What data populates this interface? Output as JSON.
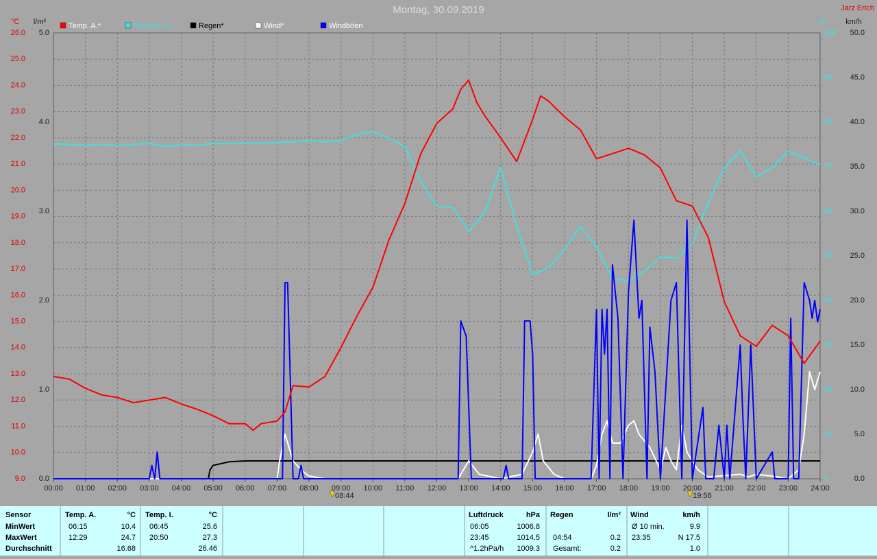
{
  "chart_data": {
    "type": "line",
    "title": "Montag, 30.09.2019",
    "author": "Jarz Erich",
    "xlim": [
      0,
      24
    ],
    "xticks": [
      {
        "value": 0,
        "label": "00:00"
      },
      {
        "value": 1,
        "label": "01:00"
      },
      {
        "value": 2,
        "label": "02:00"
      },
      {
        "value": 3,
        "label": "03:00"
      },
      {
        "value": 4,
        "label": "04:00"
      },
      {
        "value": 5,
        "label": "05:00"
      },
      {
        "value": 6,
        "label": "06:00"
      },
      {
        "value": 7,
        "label": "07:00"
      },
      {
        "value": 8,
        "label": "08:00"
      },
      {
        "value": 9,
        "label": "09:00"
      },
      {
        "value": 10,
        "label": "10:00"
      },
      {
        "value": 11,
        "label": "11:00"
      },
      {
        "value": 12,
        "label": "12:00"
      },
      {
        "value": 13,
        "label": "13:00"
      },
      {
        "value": 14,
        "label": "14:00"
      },
      {
        "value": 15,
        "label": "15:00"
      },
      {
        "value": 16,
        "label": "16:00"
      },
      {
        "value": 17,
        "label": "17:00"
      },
      {
        "value": 18,
        "label": "18:00"
      },
      {
        "value": 19,
        "label": "19:00"
      },
      {
        "value": 20,
        "label": "20:00"
      },
      {
        "value": 21,
        "label": "21:00"
      },
      {
        "value": 22,
        "label": "22:00"
      },
      {
        "value": 23,
        "label": "23:00"
      },
      {
        "value": 24,
        "label": "24:00"
      }
    ],
    "ylabel": "°C",
    "ylim": [
      9,
      26
    ],
    "yticks": [
      {
        "value": 9,
        "label": "9.0"
      },
      {
        "value": 10,
        "label": "10.0"
      },
      {
        "value": 11,
        "label": "11.0"
      },
      {
        "value": 12,
        "label": "12.0"
      },
      {
        "value": 13,
        "label": "13.0"
      },
      {
        "value": 14,
        "label": "14.0"
      },
      {
        "value": 15,
        "label": "15.0"
      },
      {
        "value": 16,
        "label": "16.0"
      },
      {
        "value": 17,
        "label": "17.0"
      },
      {
        "value": 18,
        "label": "18.0"
      },
      {
        "value": 19,
        "label": "19.0"
      },
      {
        "value": 20,
        "label": "20.0"
      },
      {
        "value": 21,
        "label": "21.0"
      },
      {
        "value": 22,
        "label": "22.0"
      },
      {
        "value": 23,
        "label": "23.0"
      },
      {
        "value": 24,
        "label": "24.0"
      },
      {
        "value": 25,
        "label": "25.0"
      },
      {
        "value": 26,
        "label": "26.0"
      }
    ],
    "y2label": "l/m²",
    "y2lim": [
      0,
      5
    ],
    "y2ticks": [
      {
        "value": 0,
        "label": "0.0"
      },
      {
        "value": 1,
        "label": "1.0"
      },
      {
        "value": 2,
        "label": "2.0"
      },
      {
        "value": 3,
        "label": "3.0"
      },
      {
        "value": 4,
        "label": "4.0"
      },
      {
        "value": 5,
        "label": "5.0"
      }
    ],
    "y3label": "%",
    "y3lim": [
      0,
      100
    ],
    "y3ticks": [
      0,
      10,
      20,
      30,
      40,
      50,
      60,
      70,
      80,
      90,
      100
    ],
    "y4label": "km/h",
    "y4lim": [
      0,
      50
    ],
    "y4ticks": [
      {
        "value": 0,
        "label": "0.0"
      },
      {
        "value": 5,
        "label": "5.0"
      },
      {
        "value": 10,
        "label": "10.0"
      },
      {
        "value": 15,
        "label": "15.0"
      },
      {
        "value": 20,
        "label": "20.0"
      },
      {
        "value": 25,
        "label": "25.0"
      },
      {
        "value": 30,
        "label": "30.0"
      },
      {
        "value": 35,
        "label": "35.0"
      },
      {
        "value": 40,
        "label": "40.0"
      },
      {
        "value": 45,
        "label": "45.0"
      },
      {
        "value": 50,
        "label": "50.0"
      }
    ],
    "grid": true,
    "series": [
      {
        "name": "Temp. A.*",
        "color": "#ff0000",
        "axis": "y",
        "x": [
          0,
          0.5,
          1,
          1.5,
          2,
          2.5,
          3,
          3.5,
          4,
          4.5,
          5,
          5.5,
          6,
          6.25,
          6.5,
          7,
          7.25,
          7.5,
          8,
          8.5,
          9,
          9.5,
          10,
          10.5,
          11,
          11.5,
          12,
          12.5,
          12.75,
          13,
          13.25,
          13.5,
          14,
          14.5,
          15,
          15.25,
          15.5,
          16,
          16.5,
          17,
          17.5,
          18,
          18.5,
          19,
          19.5,
          20,
          20.5,
          21,
          21.5,
          22,
          22.5,
          23,
          23.5,
          24
        ],
        "values": [
          12.9,
          12.8,
          12.45,
          12.2,
          12.1,
          11.9,
          12.0,
          12.1,
          11.85,
          11.65,
          11.4,
          11.1,
          11.1,
          10.85,
          11.1,
          11.2,
          11.55,
          12.55,
          12.5,
          12.9,
          14.0,
          15.2,
          16.3,
          18.1,
          19.5,
          21.4,
          22.55,
          23.1,
          23.85,
          24.2,
          23.35,
          22.85,
          22.0,
          21.1,
          22.7,
          23.6,
          23.4,
          22.8,
          22.3,
          21.2,
          21.4,
          21.6,
          21.35,
          20.85,
          19.6,
          19.4,
          18.2,
          15.75,
          14.45,
          14.05,
          14.85,
          14.45,
          13.4,
          14.25
        ]
      },
      {
        "name": "Feuchte A.*",
        "color": "#40e0e0",
        "axis": "y3",
        "x": [
          0,
          0.5,
          1,
          1.5,
          2,
          2.5,
          3,
          3.5,
          4,
          4.5,
          5,
          5.5,
          6,
          6.5,
          7,
          7.5,
          8,
          8.5,
          9,
          9.5,
          10,
          10.5,
          11,
          11.5,
          12,
          12.5,
          13,
          13.5,
          14,
          14.5,
          15,
          15.5,
          16,
          16.5,
          17,
          17.5,
          18,
          18.5,
          19,
          19.5,
          20,
          20.5,
          21,
          21.5,
          22,
          22.5,
          23,
          23.5,
          24
        ],
        "values": [
          75.1,
          75,
          74.8,
          75,
          74.7,
          75,
          75.2,
          74.5,
          75,
          74.8,
          75.2,
          75.2,
          75.3,
          75.3,
          75.4,
          75.6,
          75.8,
          75.6,
          75.8,
          77.2,
          77.8,
          76.5,
          74.5,
          66.6,
          61.2,
          60.9,
          55.5,
          59.7,
          69.7,
          56.6,
          45.8,
          47.4,
          51.5,
          56.6,
          52,
          45,
          44.3,
          46.6,
          49.7,
          49.5,
          52.8,
          62,
          69.7,
          73.5,
          67.7,
          69.7,
          73.5,
          72,
          70.5
        ]
      },
      {
        "name": "Regen*",
        "color": "#000000",
        "axis": "y2",
        "x": [
          0,
          4.85,
          4.9,
          5,
          5.5,
          6,
          24
        ],
        "values": [
          0,
          0,
          0.1,
          0.15,
          0.19,
          0.2,
          0.2
        ]
      },
      {
        "name": "Wind*",
        "color": "#ffffff",
        "axis": "y4",
        "x": [
          0,
          7,
          7.08,
          7.25,
          7.5,
          7.75,
          8,
          8.5,
          12.67,
          13,
          13.33,
          14,
          14.67,
          15,
          15.17,
          15.33,
          15.67,
          16,
          16.83,
          17,
          17.17,
          17.33,
          17.5,
          17.75,
          18,
          18.17,
          18.33,
          18.67,
          19,
          19.17,
          19.33,
          19.5,
          19.67,
          19.83,
          20.17,
          20.5,
          21.5,
          21.75,
          22,
          22.5,
          23,
          23.33,
          23.5,
          23.67,
          23.83,
          24
        ],
        "values": [
          0,
          0,
          2,
          5,
          2,
          1,
          0.3,
          0,
          0,
          2,
          0.5,
          0,
          0.5,
          3,
          5,
          2,
          0.5,
          0,
          0,
          1.5,
          5,
          6.5,
          4,
          4,
          6,
          6.5,
          5,
          3.5,
          1,
          3.5,
          2,
          1,
          6,
          3,
          1,
          0.2,
          0.5,
          0.2,
          0.5,
          0.3,
          0,
          1,
          5,
          12,
          10,
          12
        ]
      },
      {
        "name": "Windböen",
        "color": "#0000ff",
        "axis": "y4",
        "x": [
          0,
          3,
          3.08,
          3.17,
          3.25,
          3.33,
          7.17,
          7.25,
          7.33,
          7.5,
          7.67,
          7.75,
          7.83,
          12.67,
          12.75,
          12.92,
          13.08,
          14.08,
          14.17,
          14.25,
          14.67,
          14.75,
          14.92,
          15,
          15.08,
          16.83,
          17,
          17.08,
          17.17,
          17.25,
          17.33,
          17.42,
          17.5,
          17.67,
          17.83,
          18,
          18.17,
          18.33,
          18.42,
          18.58,
          18.67,
          18.83,
          19,
          19.33,
          19.5,
          19.67,
          19.83,
          20,
          20.33,
          20.42,
          20.67,
          20.83,
          21,
          21.08,
          21.17,
          21.5,
          21.58,
          21.67,
          21.83,
          22,
          22.5,
          22.58,
          23,
          23.08,
          23.17,
          23.33,
          23.5,
          23.67,
          23.75,
          23.83,
          23.92,
          24
        ],
        "values": [
          0,
          0,
          1.5,
          0,
          3,
          0,
          0,
          22,
          22,
          0,
          0,
          1.5,
          0,
          0,
          17.7,
          16,
          0,
          0,
          1.5,
          0,
          0,
          17.7,
          17.7,
          14,
          0,
          0,
          19,
          0,
          19,
          14,
          19,
          0,
          24,
          18,
          0,
          21,
          29,
          18,
          20,
          0,
          17,
          12,
          0,
          20,
          22,
          0,
          29,
          0,
          8,
          0,
          0,
          6,
          0,
          6,
          0,
          15,
          7,
          0,
          15,
          0,
          3,
          0,
          0,
          18,
          0,
          0,
          22,
          20,
          18,
          20,
          17.6,
          19
        ]
      }
    ],
    "annotations": [
      {
        "text": "08:44",
        "x": 8.73
      },
      {
        "text": "19:56",
        "x": 19.93
      }
    ]
  },
  "table": {
    "header": [
      "Sensor",
      "Temp. A.",
      "°C",
      "Temp. I.",
      "°C",
      "Luftdruck",
      "hPa",
      "Regen",
      "l/m²",
      "Wind",
      "km/h"
    ],
    "rows": [
      [
        "MinWert",
        "06:15",
        "10.4",
        "06:45",
        "25.6",
        "06:05",
        "1006.8",
        null,
        null,
        "Ø 10 min.",
        "9.9"
      ],
      [
        "MaxWert",
        "12:29",
        "24.7",
        "20:50",
        "27.3",
        "23:45",
        "1014.5",
        "04:54",
        "0.2",
        "23:35",
        "N 17.5"
      ],
      [
        "Durchschnitt",
        null,
        "16.68",
        null,
        "26.46",
        "^1.2hPa/h",
        "1009.3",
        "Gesamt:",
        "0.2",
        null,
        "1.0"
      ]
    ]
  }
}
